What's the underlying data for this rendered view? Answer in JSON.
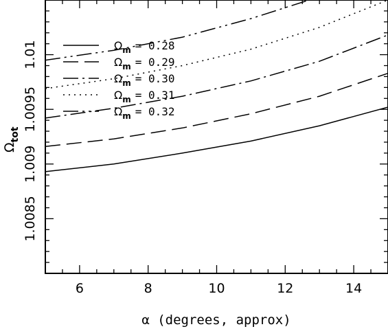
{
  "chart_data": {
    "type": "line",
    "xlabel": "α (degrees, approx)",
    "ylabel_main": "Ω",
    "ylabel_sub": "tot",
    "xlim": [
      5,
      15
    ],
    "ylim": [
      1.008,
      1.0105
    ],
    "xticks": [
      {
        "value": 6,
        "label": "6"
      },
      {
        "value": 8,
        "label": "8"
      },
      {
        "value": 10,
        "label": "10"
      },
      {
        "value": 12,
        "label": "12"
      },
      {
        "value": 14,
        "label": "14"
      }
    ],
    "yticks": [
      {
        "value": 1.0085,
        "label": "1.0085"
      },
      {
        "value": 1.009,
        "label": "1.009"
      },
      {
        "value": 1.0095,
        "label": "1.0095"
      },
      {
        "value": 1.01,
        "label": "1.01"
      }
    ],
    "legend_placement": "top-left",
    "series": [
      {
        "legend_symbol": "Ω",
        "legend_sub": "m",
        "legend_value": "= 0.28",
        "style": "solid",
        "x": [
          5,
          7,
          9,
          11,
          13,
          15
        ],
        "y": [
          1.00893,
          1.009,
          1.0091,
          1.00921,
          1.00935,
          1.00952
        ]
      },
      {
        "legend_symbol": "Ω",
        "legend_sub": "m",
        "legend_value": "= 0.29",
        "style": "dashed",
        "x": [
          5,
          7,
          9,
          11,
          13,
          15
        ],
        "y": [
          1.00916,
          1.00923,
          1.00933,
          1.00946,
          1.00962,
          1.00983
        ]
      },
      {
        "legend_symbol": "Ω",
        "legend_sub": "m",
        "legend_value": "= 0.30",
        "style": "dashdot",
        "x": [
          5,
          7,
          9,
          11,
          13,
          15
        ],
        "y": [
          1.00942,
          1.00951,
          1.00962,
          1.00976,
          1.00994,
          1.01018
        ]
      },
      {
        "legend_symbol": "Ω",
        "legend_sub": "m",
        "legend_value": "= 0.31",
        "style": "dotted",
        "x": [
          5,
          7,
          9,
          11,
          13,
          15
        ],
        "y": [
          1.00969,
          1.00978,
          1.0099,
          1.01005,
          1.01025,
          1.0105
        ]
      },
      {
        "legend_symbol": "Ω",
        "legend_sub": "m",
        "legend_value": "= 0.32",
        "style": "dashdotdot",
        "x": [
          5,
          7,
          9,
          11,
          13,
          15
        ],
        "y": [
          1.00995,
          1.01004,
          1.01016,
          1.01033,
          1.01053,
          1.0108
        ]
      }
    ]
  }
}
